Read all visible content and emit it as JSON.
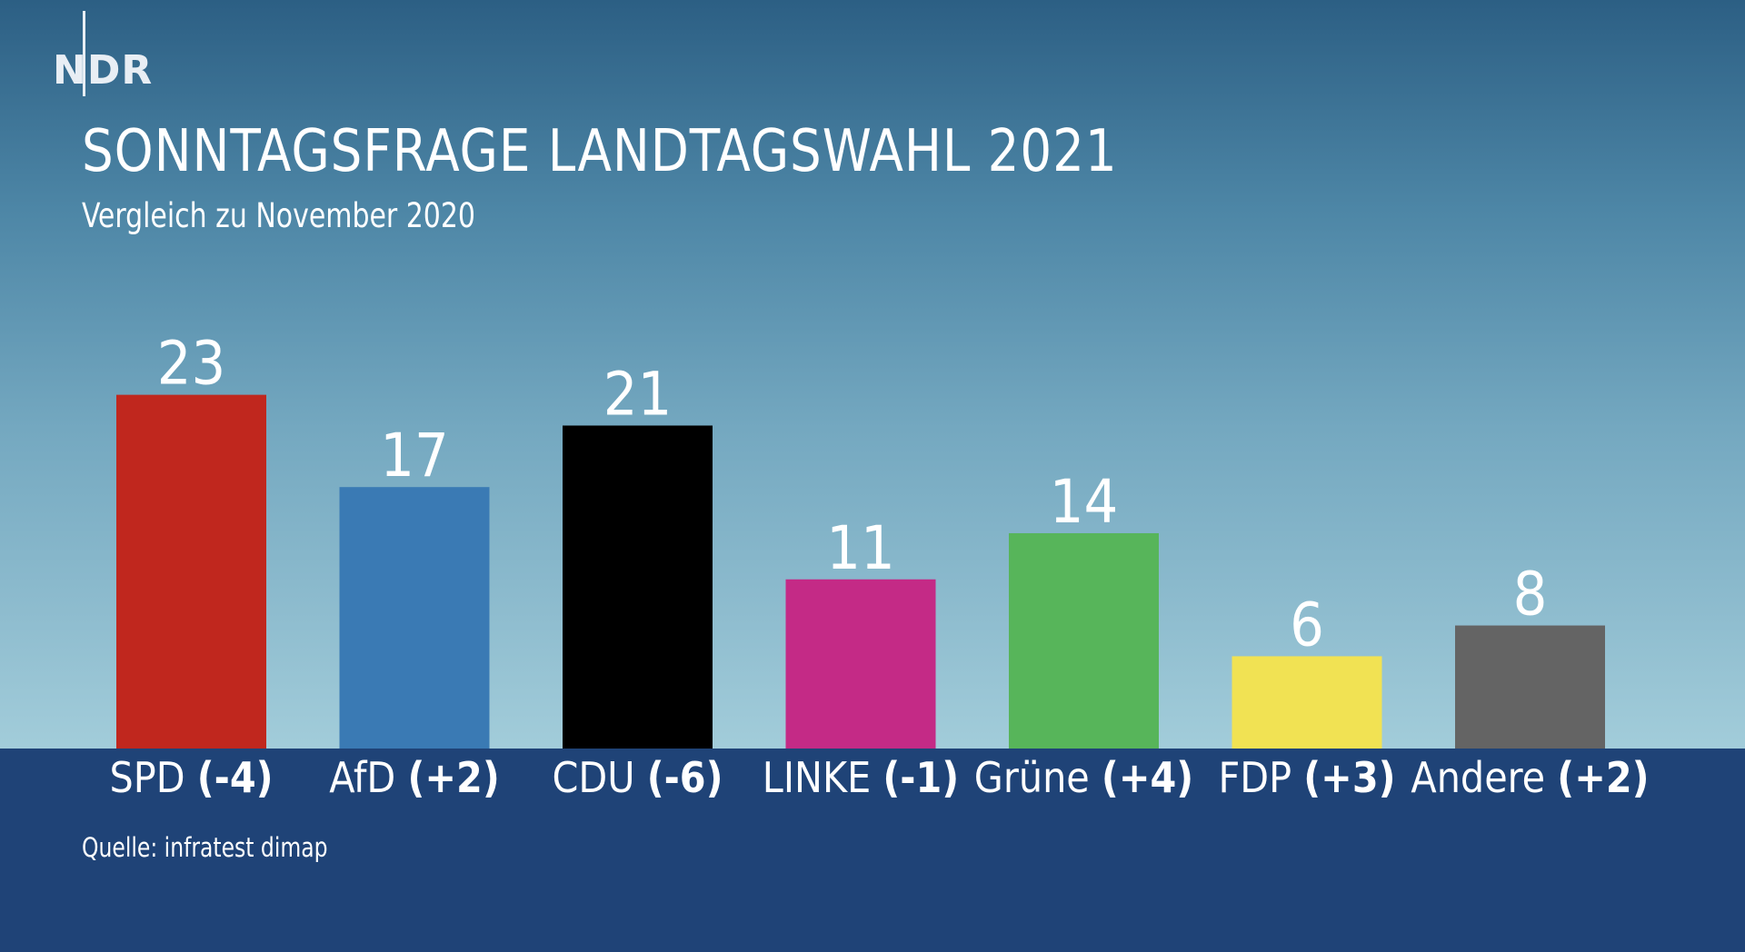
{
  "logo": {
    "text": "NDR"
  },
  "title": "SONNTAGSFRAGE LANDTAGSWAHL 2021",
  "subtitle": "Vergleich zu November 2020",
  "source": "Quelle: infratest dimap",
  "colors": {
    "SPD": "#c0271e",
    "AfD": "#3a7ab4",
    "CDU": "#000000",
    "LINKE": "#c42a86",
    "Grüne": "#57b55a",
    "FDP": "#f1e253",
    "Andere": "#646464"
  },
  "chart_data": {
    "type": "bar",
    "title": "SONNTAGSFRAGE LANDTAGSWAHL 2021",
    "subtitle": "Vergleich zu November 2020",
    "ylim": [
      0,
      25
    ],
    "categories": [
      "SPD",
      "AfD",
      "CDU",
      "LINKE",
      "Grüne",
      "FDP",
      "Andere"
    ],
    "values": [
      23,
      17,
      21,
      11,
      14,
      6,
      8
    ],
    "changes": [
      "(-4)",
      "(+2)",
      "(-6)",
      "(-1)",
      "(+4)",
      "(+3)",
      "(+2)"
    ],
    "xlabel": "",
    "ylabel": ""
  }
}
